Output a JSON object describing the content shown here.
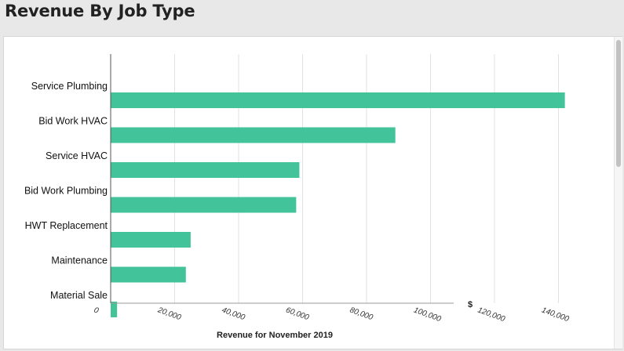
{
  "page": {
    "title": "Revenue By Job Type"
  },
  "chart_data": {
    "type": "bar",
    "orientation": "horizontal",
    "categories": [
      "Service Plumbing",
      "Bid Work HVAC",
      "Service HVAC",
      "Bid Work Plumbing",
      "HWT Replacement",
      "Maintenance",
      "Material Sale"
    ],
    "values": [
      142000,
      89000,
      59000,
      58000,
      25000,
      23500,
      2000
    ],
    "xlabel": "Revenue for November 2019",
    "x_unit_label": "$",
    "xlim": [
      0,
      140000
    ],
    "x_ticks": [
      0,
      20000,
      40000,
      60000,
      80000,
      100000,
      120000,
      140000
    ],
    "x_tick_labels": [
      "0",
      "20,000",
      "40,000",
      "60,000",
      "80,000",
      "100,000",
      "120,000",
      "140,000"
    ],
    "grid": "vertical",
    "bar_color": "#42c39a",
    "legend": "none"
  }
}
